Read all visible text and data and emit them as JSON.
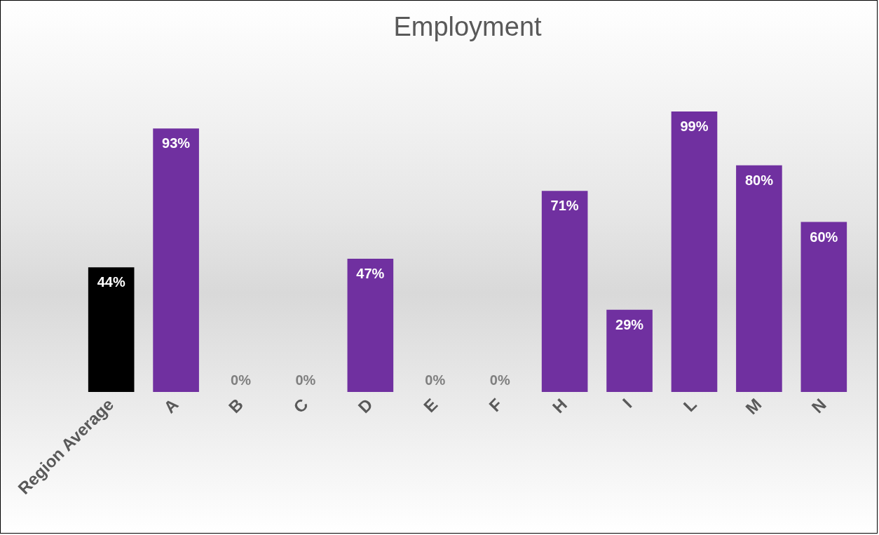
{
  "chart_data": {
    "type": "bar",
    "title": "Employment",
    "categories": [
      "Region Average",
      "A",
      "B",
      "C",
      "D",
      "E",
      "F",
      "H",
      "I",
      "L",
      "M",
      "N"
    ],
    "values": [
      44,
      93,
      0,
      0,
      47,
      0,
      0,
      71,
      29,
      99,
      80,
      60
    ],
    "value_labels": [
      "44%",
      "93%",
      "0%",
      "0%",
      "47%",
      "0%",
      "0%",
      "71%",
      "29%",
      "99%",
      "80%",
      "60%"
    ],
    "colors": [
      "#000000",
      "#7030a0",
      "#7030a0",
      "#7030a0",
      "#7030a0",
      "#7030a0",
      "#7030a0",
      "#7030a0",
      "#7030a0",
      "#7030a0",
      "#7030a0",
      "#7030a0"
    ],
    "grid": false
  }
}
